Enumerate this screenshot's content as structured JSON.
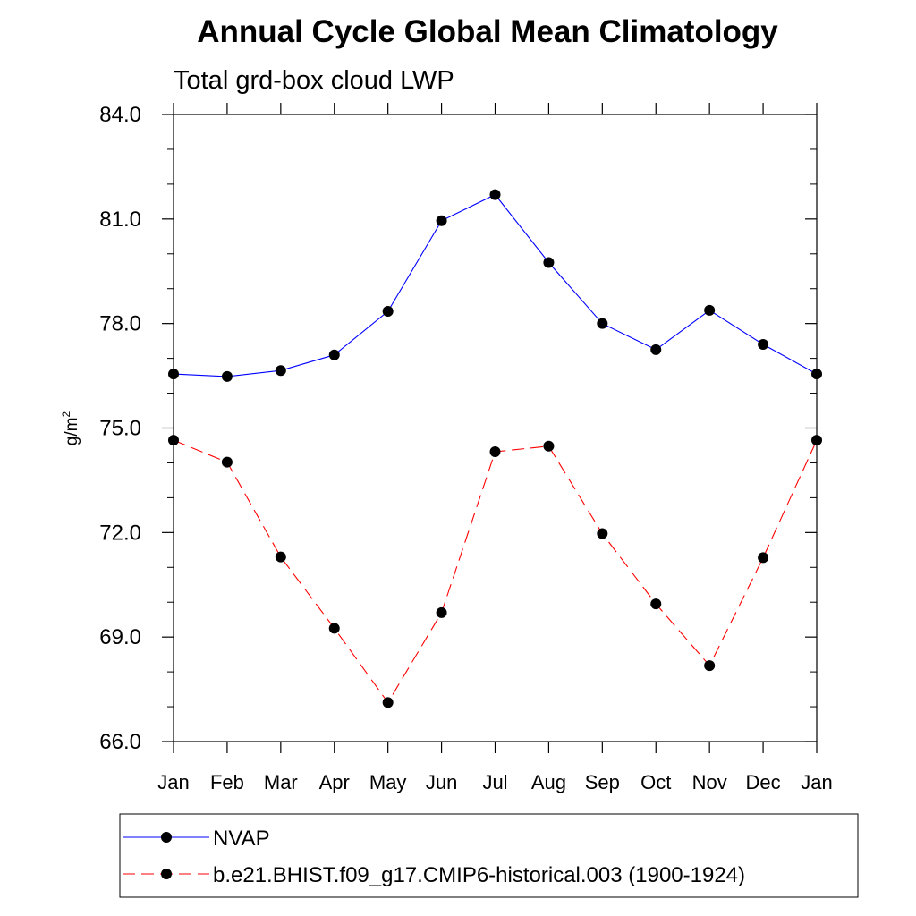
{
  "chart_data": {
    "type": "line",
    "title": "Annual Cycle Global Mean Climatology",
    "subtitle": "Total grd-box cloud LWP",
    "ylabel": {
      "base": "g/m",
      "sup": "2"
    },
    "xlabel": "",
    "categories": [
      "Jan",
      "Feb",
      "Mar",
      "Apr",
      "May",
      "Jun",
      "Jul",
      "Aug",
      "Sep",
      "Oct",
      "Nov",
      "Dec",
      "Jan"
    ],
    "ylim": [
      66.0,
      84.0
    ],
    "yticks": [
      "66.0",
      "69.0",
      "72.0",
      "75.0",
      "78.0",
      "81.0",
      "84.0"
    ],
    "grid": false,
    "legend_position": "bottom",
    "series": [
      {
        "name": "NVAP",
        "color": "#0000ff",
        "line_style": "solid",
        "marker": "filled-circle",
        "values": [
          76.55,
          76.48,
          76.65,
          77.1,
          78.35,
          80.95,
          81.7,
          79.75,
          78.0,
          77.25,
          78.38,
          77.4,
          76.55
        ]
      },
      {
        "name": "b.e21.BHIST.f09_g17.CMIP6-historical.003 (1900-1924)",
        "color": "#ff0000",
        "line_style": "dashed",
        "marker": "filled-circle",
        "values": [
          74.65,
          74.02,
          71.3,
          69.25,
          67.12,
          69.7,
          74.32,
          74.48,
          71.97,
          69.95,
          68.18,
          71.28,
          74.65
        ]
      }
    ]
  }
}
